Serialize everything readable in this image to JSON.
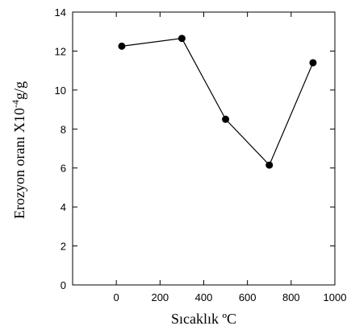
{
  "chart_data": {
    "type": "line",
    "title": "",
    "xlabel": "Sıcaklık ºC",
    "ylabel_main": "Erozyon oranı X10",
    "ylabel_sup": "-4",
    "ylabel_tail": "g/g",
    "xlim": [
      -200,
      1000
    ],
    "ylim": [
      0,
      14
    ],
    "xticks": [
      0,
      200,
      400,
      600,
      800,
      1000
    ],
    "yticks": [
      0,
      2,
      4,
      6,
      8,
      10,
      12,
      14
    ],
    "grid": false,
    "series": [
      {
        "x": [
          25,
          300,
          500,
          700,
          900
        ],
        "y": [
          12.25,
          12.65,
          8.5,
          6.15,
          11.4
        ]
      }
    ],
    "colors": {
      "line": "#000000",
      "marker": "#000000",
      "frame": "#000000"
    }
  }
}
